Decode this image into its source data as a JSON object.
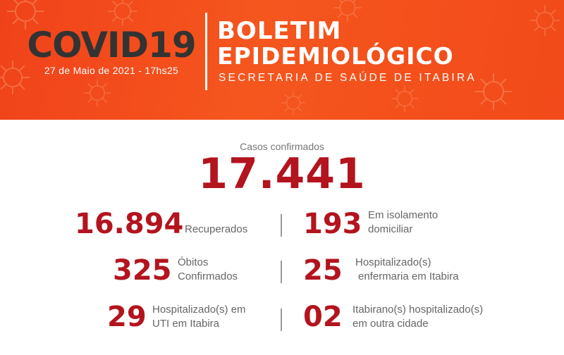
{
  "header": {
    "title": "COVID19",
    "date": "27 de Maio de 2021 - 17hs25",
    "boletim_line1": "BOLETIM",
    "boletim_line2": "EPIDEMIOLÓGICO",
    "secretaria": "SECRETARIA DE SAÚDE DE ITABIRA"
  },
  "confirmed": {
    "label": "Casos confirmados",
    "value": "17.441"
  },
  "stats": {
    "recuperados": {
      "value": "16.894",
      "label": "Recuperados"
    },
    "isolamento": {
      "value": "193",
      "line1": "Em isolamento",
      "line2": "domiciliar"
    },
    "obitos": {
      "value": "325",
      "line1": "Óbitos",
      "line2": "Confirmados"
    },
    "enfermaria": {
      "value": "25",
      "line1": "Hospitalizado(s)",
      "line2": "enfermaria em Itabira"
    },
    "uti": {
      "value": "29",
      "line1": "Hospitalizado(s) em",
      "line2": "UTI em Itabira"
    },
    "outra_cidade": {
      "value": "02",
      "line1": "Itabirano(s) hospitalizado(s)",
      "line2": "em outra cidade"
    }
  },
  "colors": {
    "banner": "#f5561e",
    "accent_red": "#b3141e",
    "title_dark": "#333333"
  }
}
